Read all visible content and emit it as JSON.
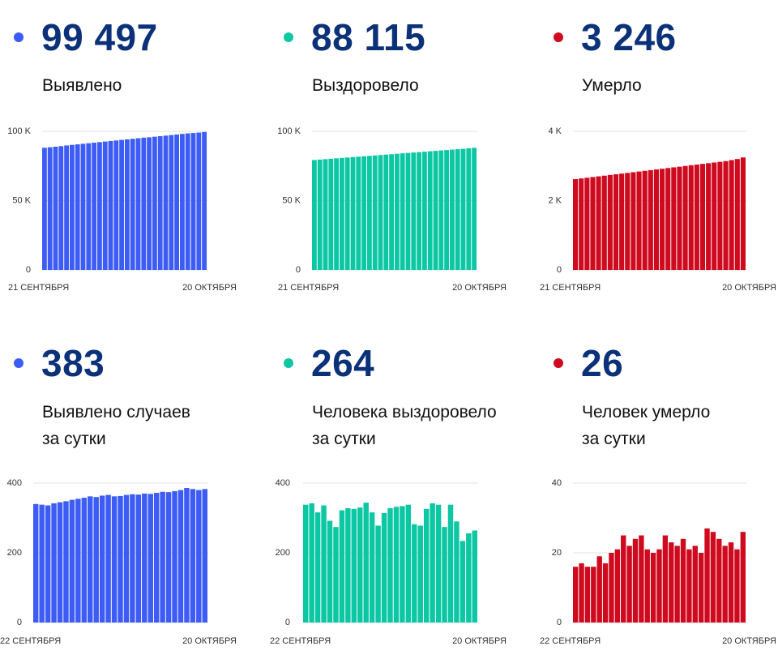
{
  "colors": {
    "blue": "#3d5cf5",
    "teal": "#0cc7a4",
    "red": "#cf0a1e",
    "headline": "#0b3179"
  },
  "panels": [
    {
      "total": "99 497",
      "label_lines": [
        "Выявлено"
      ],
      "color": "#3d5cf5"
    },
    {
      "total": "88 115",
      "label_lines": [
        "Выздоровело"
      ],
      "color": "#0cc7a4"
    },
    {
      "total": "3 246",
      "label_lines": [
        "Умерло"
      ],
      "color": "#cf0a1e"
    },
    {
      "total": "383",
      "label_lines": [
        "Выявлено случаев",
        "за сутки"
      ],
      "color": "#3d5cf5"
    },
    {
      "total": "264",
      "label_lines": [
        "Человека выздоровело",
        "за сутки"
      ],
      "color": "#0cc7a4"
    },
    {
      "total": "26",
      "label_lines": [
        "Человек умерло",
        "за сутки"
      ],
      "color": "#cf0a1e"
    }
  ],
  "chart_data": [
    {
      "type": "bar",
      "color": "#3d5cf5",
      "x_start_label": "21 СЕНТЯБРЯ",
      "x_end_label": "20 ОКТЯБРЯ",
      "yticks": [
        0,
        50000,
        100000
      ],
      "ytick_labels": [
        "0",
        "50 K",
        "100 K"
      ],
      "ylim": [
        0,
        100000
      ],
      "values": [
        88100,
        88500,
        88900,
        89300,
        89800,
        90200,
        90600,
        91000,
        91400,
        91800,
        92200,
        92600,
        93000,
        93400,
        93800,
        94200,
        94600,
        95000,
        95400,
        95700,
        96100,
        96500,
        96900,
        97300,
        97700,
        98100,
        98500,
        98800,
        99100,
        99497
      ]
    },
    {
      "type": "bar",
      "color": "#0cc7a4",
      "x_start_label": "21 СЕНТЯБРЯ",
      "x_end_label": "20 ОКТЯБРЯ",
      "yticks": [
        0,
        50000,
        100000
      ],
      "ytick_labels": [
        "0",
        "50 K",
        "100 K"
      ],
      "ylim": [
        0,
        100000
      ],
      "values": [
        79300,
        79600,
        79900,
        80200,
        80500,
        80800,
        81100,
        81400,
        81700,
        82000,
        82300,
        82600,
        82900,
        83200,
        83500,
        83800,
        84100,
        84400,
        84700,
        85000,
        85300,
        85600,
        85900,
        86200,
        86500,
        86800,
        87100,
        87400,
        87800,
        88115
      ]
    },
    {
      "type": "bar",
      "color": "#cf0a1e",
      "x_start_label": "21 СЕНТЯБРЯ",
      "x_end_label": "20 ОКТЯБРЯ",
      "yticks": [
        0,
        2000,
        4000
      ],
      "ytick_labels": [
        "0",
        "2 K",
        "4 K"
      ],
      "ylim": [
        0,
        4000
      ],
      "values": [
        2620,
        2640,
        2660,
        2680,
        2700,
        2720,
        2740,
        2760,
        2780,
        2800,
        2820,
        2840,
        2860,
        2880,
        2900,
        2920,
        2940,
        2960,
        2980,
        3000,
        3020,
        3040,
        3060,
        3080,
        3100,
        3120,
        3140,
        3170,
        3200,
        3246
      ]
    },
    {
      "type": "bar",
      "color": "#3d5cf5",
      "x_start_label": "22 СЕНТЯБРЯ",
      "x_end_label": "20 ОКТЯБРЯ",
      "yticks": [
        0,
        200,
        400
      ],
      "ytick_labels": [
        "0",
        "200",
        "400"
      ],
      "ylim": [
        0,
        400
      ],
      "values": [
        340,
        338,
        336,
        342,
        345,
        348,
        352,
        355,
        358,
        362,
        360,
        364,
        366,
        362,
        363,
        366,
        368,
        367,
        370,
        369,
        372,
        375,
        374,
        377,
        380,
        386,
        383,
        380,
        383
      ]
    },
    {
      "type": "bar",
      "color": "#0cc7a4",
      "x_start_label": "22 СЕНТЯБРЯ",
      "x_end_label": "20 ОКТЯБРЯ",
      "yticks": [
        0,
        200,
        400
      ],
      "ytick_labels": [
        "0",
        "200",
        "400"
      ],
      "ylim": [
        0,
        400
      ],
      "values": [
        338,
        342,
        316,
        336,
        292,
        274,
        322,
        328,
        326,
        330,
        344,
        316,
        278,
        314,
        328,
        332,
        334,
        338,
        282,
        278,
        326,
        342,
        338,
        274,
        338,
        290,
        234,
        256,
        264
      ]
    },
    {
      "type": "bar",
      "color": "#cf0a1e",
      "x_start_label": "22 СЕНТЯБРЯ",
      "x_end_label": "20 ОКТЯБРЯ",
      "yticks": [
        0,
        20,
        40
      ],
      "ytick_labels": [
        "0",
        "20",
        "40"
      ],
      "ylim": [
        0,
        40
      ],
      "values": [
        16,
        17,
        16,
        16,
        19,
        17,
        20,
        21,
        25,
        22,
        24,
        25,
        21,
        20,
        21,
        25,
        23,
        22,
        24,
        21,
        22,
        20,
        27,
        26,
        24,
        22,
        23,
        21,
        26
      ]
    }
  ]
}
